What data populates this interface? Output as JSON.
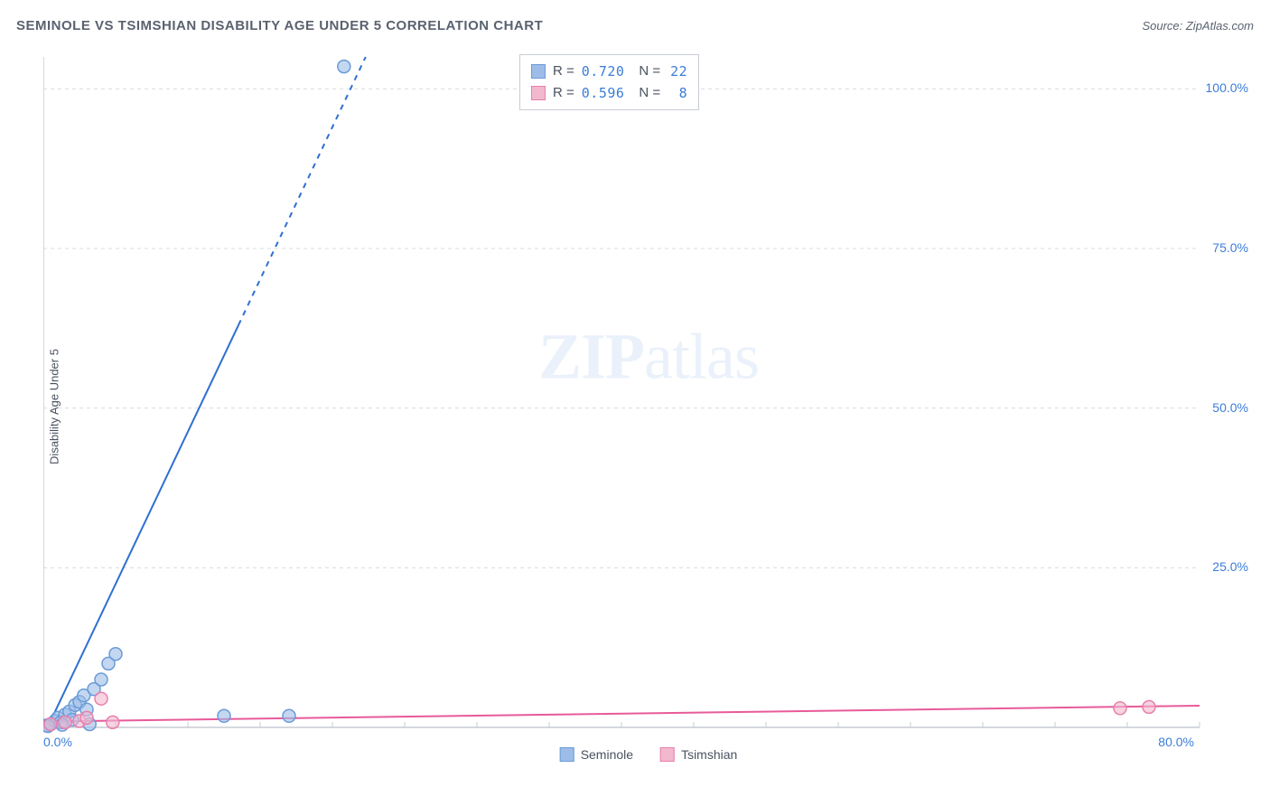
{
  "header": {
    "title": "SEMINOLE VS TSIMSHIAN DISABILITY AGE UNDER 5 CORRELATION CHART",
    "source": "Source: ZipAtlas.com"
  },
  "chart": {
    "type": "scatter",
    "ylabel": "Disability Age Under 5",
    "watermark_left": "ZIP",
    "watermark_right": "atlas",
    "xlim": [
      0,
      80
    ],
    "ylim": [
      0,
      105
    ],
    "x_tick_labels": [
      {
        "pos": 0,
        "label": "0.0%"
      },
      {
        "pos": 80,
        "label": "80.0%"
      }
    ],
    "y_tick_labels": [
      {
        "pos": 25,
        "label": "25.0%"
      },
      {
        "pos": 50,
        "label": "50.0%"
      },
      {
        "pos": 75,
        "label": "75.0%"
      },
      {
        "pos": 100,
        "label": "100.0%"
      }
    ],
    "gridline_y": [
      25,
      50,
      75,
      100
    ],
    "minor_tick_x_step": 5,
    "background_color": "#ffffff",
    "gridline_color": "#d8dce2",
    "axis_color": "#c8ccd4",
    "series": [
      {
        "name": "Seminole",
        "marker_color_fill": "#9dbde8",
        "marker_color_stroke": "#6a9bd8",
        "marker_opacity": 0.6,
        "marker_radius": 7,
        "line_color": "#2e6fd0",
        "line_width": 2,
        "points": [
          {
            "x": 0.2,
            "y": 0.3
          },
          {
            "x": 0.5,
            "y": 0.5
          },
          {
            "x": 0.8,
            "y": 1.0
          },
          {
            "x": 1.0,
            "y": 1.5
          },
          {
            "x": 1.2,
            "y": 0.8
          },
          {
            "x": 1.5,
            "y": 2.0
          },
          {
            "x": 1.8,
            "y": 2.5
          },
          {
            "x": 2.0,
            "y": 1.2
          },
          {
            "x": 2.2,
            "y": 3.5
          },
          {
            "x": 2.5,
            "y": 4.0
          },
          {
            "x": 2.8,
            "y": 5.0
          },
          {
            "x": 3.0,
            "y": 2.8
          },
          {
            "x": 3.5,
            "y": 6.0
          },
          {
            "x": 4.0,
            "y": 7.5
          },
          {
            "x": 4.5,
            "y": 10.0
          },
          {
            "x": 5.0,
            "y": 11.5
          },
          {
            "x": 3.2,
            "y": 0.5
          },
          {
            "x": 0.3,
            "y": 0.2
          },
          {
            "x": 1.3,
            "y": 0.4
          },
          {
            "x": 12.5,
            "y": 1.8
          },
          {
            "x": 17.0,
            "y": 1.8
          },
          {
            "x": 20.8,
            "y": 103.5
          }
        ],
        "trendline_solid": {
          "x1": 0.5,
          "y1": 1,
          "x2": 13.5,
          "y2": 63
        },
        "trendline_dashed": {
          "x1": 13.5,
          "y1": 63,
          "x2": 22.3,
          "y2": 105
        }
      },
      {
        "name": "Tsimshian",
        "marker_color_fill": "#f2b8ce",
        "marker_color_stroke": "#e87fad",
        "marker_opacity": 0.6,
        "marker_radius": 7,
        "line_color": "#e85a9a",
        "line_width": 2,
        "points": [
          {
            "x": 0.5,
            "y": 0.5
          },
          {
            "x": 1.5,
            "y": 0.8
          },
          {
            "x": 2.5,
            "y": 1.0
          },
          {
            "x": 3.0,
            "y": 1.5
          },
          {
            "x": 4.0,
            "y": 4.5
          },
          {
            "x": 4.8,
            "y": 0.8
          },
          {
            "x": 74.5,
            "y": 3.0
          },
          {
            "x": 76.5,
            "y": 3.2
          }
        ],
        "trendline_solid": {
          "x1": 0,
          "y1": 0.9,
          "x2": 80,
          "y2": 3.4
        }
      }
    ],
    "stats_legend": [
      {
        "swatch_fill": "#9dbde8",
        "swatch_stroke": "#6a9bd8",
        "r": "0.720",
        "n": "22"
      },
      {
        "swatch_fill": "#f2b8ce",
        "swatch_stroke": "#e87fad",
        "r": "0.596",
        "n": "8"
      }
    ],
    "bottom_legend": [
      {
        "swatch_fill": "#9dbde8",
        "swatch_stroke": "#6a9bd8",
        "label": "Seminole"
      },
      {
        "swatch_fill": "#f2b8ce",
        "swatch_stroke": "#e87fad",
        "label": "Tsimshian"
      }
    ]
  }
}
